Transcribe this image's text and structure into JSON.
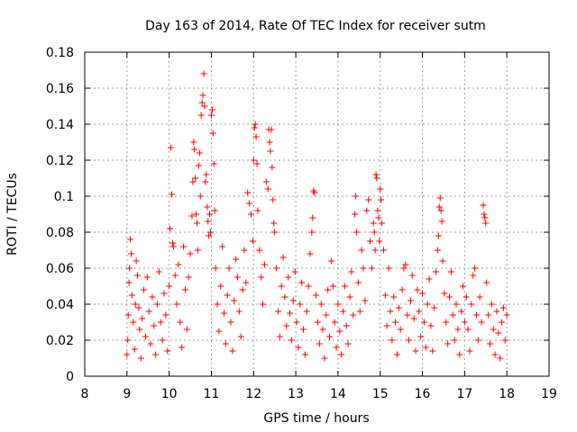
{
  "chart_data": {
    "type": "scatter",
    "title": "Day 163 of 2014, Rate Of TEC Index for receiver sutm",
    "xlabel": "GPS time / hours",
    "ylabel": "ROTI / TECUs",
    "xlim": [
      8,
      19
    ],
    "ylim": [
      0,
      0.18
    ],
    "xticks": [
      8,
      9,
      10,
      11,
      12,
      13,
      14,
      15,
      16,
      17,
      18,
      19
    ],
    "yticks": [
      0,
      0.02,
      0.04,
      0.06,
      0.08,
      0.1,
      0.12,
      0.14,
      0.16,
      0.18
    ],
    "grid": true,
    "marker": "+",
    "color": "#ff0000",
    "series": [
      {
        "name": "ROTI",
        "points": [
          [
            9.0,
            0.012
          ],
          [
            9.02,
            0.02
          ],
          [
            9.03,
            0.034
          ],
          [
            9.05,
            0.052
          ],
          [
            9.06,
            0.06
          ],
          [
            9.08,
            0.076
          ],
          [
            9.1,
            0.068
          ],
          [
            9.12,
            0.045
          ],
          [
            9.15,
            0.03
          ],
          [
            9.18,
            0.015
          ],
          [
            9.2,
            0.04
          ],
          [
            9.22,
            0.064
          ],
          [
            9.25,
            0.056
          ],
          [
            9.28,
            0.038
          ],
          [
            9.3,
            0.026
          ],
          [
            9.33,
            0.01
          ],
          [
            9.36,
            0.032
          ],
          [
            9.4,
            0.048
          ],
          [
            9.44,
            0.022
          ],
          [
            9.48,
            0.055
          ],
          [
            9.52,
            0.036
          ],
          [
            9.56,
            0.018
          ],
          [
            9.6,
            0.044
          ],
          [
            9.64,
            0.028
          ],
          [
            9.68,
            0.012
          ],
          [
            9.72,
            0.04
          ],
          [
            9.76,
            0.058
          ],
          [
            9.8,
            0.03
          ],
          [
            9.84,
            0.02
          ],
          [
            9.88,
            0.046
          ],
          [
            9.92,
            0.034
          ],
          [
            9.96,
            0.014
          ],
          [
            10.0,
            0.05
          ],
          [
            10.02,
            0.082
          ],
          [
            10.04,
            0.127
          ],
          [
            10.06,
            0.101
          ],
          [
            10.08,
            0.074
          ],
          [
            10.1,
            0.072
          ],
          [
            10.14,
            0.056
          ],
          [
            10.18,
            0.04
          ],
          [
            10.22,
            0.062
          ],
          [
            10.26,
            0.03
          ],
          [
            10.3,
            0.016
          ],
          [
            10.34,
            0.072
          ],
          [
            10.38,
            0.048
          ],
          [
            10.42,
            0.026
          ],
          [
            10.46,
            0.055
          ],
          [
            10.5,
            0.068
          ],
          [
            10.54,
            0.089
          ],
          [
            10.56,
            0.108
          ],
          [
            10.58,
            0.13
          ],
          [
            10.6,
            0.126
          ],
          [
            10.62,
            0.11
          ],
          [
            10.64,
            0.09
          ],
          [
            10.66,
            0.085
          ],
          [
            10.68,
            0.07
          ],
          [
            10.7,
            0.117
          ],
          [
            10.72,
            0.124
          ],
          [
            10.74,
            0.1
          ],
          [
            10.76,
            0.145
          ],
          [
            10.78,
            0.152
          ],
          [
            10.8,
            0.156
          ],
          [
            10.82,
            0.168
          ],
          [
            10.84,
            0.15
          ],
          [
            10.86,
            0.108
          ],
          [
            10.88,
            0.112
          ],
          [
            10.9,
            0.094
          ],
          [
            10.92,
            0.086
          ],
          [
            10.94,
            0.078
          ],
          [
            10.96,
            0.09
          ],
          [
            10.98,
            0.08
          ],
          [
            11.0,
            0.145
          ],
          [
            11.02,
            0.148
          ],
          [
            11.04,
            0.135
          ],
          [
            11.06,
            0.118
          ],
          [
            11.08,
            0.092
          ],
          [
            11.1,
            0.06
          ],
          [
            11.14,
            0.04
          ],
          [
            11.18,
            0.025
          ],
          [
            11.22,
            0.05
          ],
          [
            11.26,
            0.072
          ],
          [
            11.3,
            0.035
          ],
          [
            11.34,
            0.018
          ],
          [
            11.38,
            0.045
          ],
          [
            11.42,
            0.06
          ],
          [
            11.46,
            0.03
          ],
          [
            11.5,
            0.014
          ],
          [
            11.54,
            0.042
          ],
          [
            11.58,
            0.065
          ],
          [
            11.62,
            0.055
          ],
          [
            11.66,
            0.036
          ],
          [
            11.7,
            0.022
          ],
          [
            11.74,
            0.048
          ],
          [
            11.78,
            0.07
          ],
          [
            11.82,
            0.052
          ],
          [
            11.86,
            0.102
          ],
          [
            11.9,
            0.096
          ],
          [
            11.94,
            0.09
          ],
          [
            11.98,
            0.075
          ],
          [
            12.0,
            0.12
          ],
          [
            12.02,
            0.138
          ],
          [
            12.04,
            0.14
          ],
          [
            12.06,
            0.133
          ],
          [
            12.08,
            0.118
          ],
          [
            12.1,
            0.092
          ],
          [
            12.14,
            0.07
          ],
          [
            12.18,
            0.055
          ],
          [
            12.22,
            0.04
          ],
          [
            12.26,
            0.062
          ],
          [
            12.3,
            0.108
          ],
          [
            12.34,
            0.104
          ],
          [
            12.36,
            0.137
          ],
          [
            12.38,
            0.13
          ],
          [
            12.4,
            0.125
          ],
          [
            12.42,
            0.137
          ],
          [
            12.44,
            0.116
          ],
          [
            12.46,
            0.098
          ],
          [
            12.48,
            0.085
          ],
          [
            12.5,
            0.08
          ],
          [
            12.54,
            0.06
          ],
          [
            12.58,
            0.036
          ],
          [
            12.62,
            0.022
          ],
          [
            12.66,
            0.05
          ],
          [
            12.7,
            0.066
          ],
          [
            12.74,
            0.044
          ],
          [
            12.78,
            0.028
          ],
          [
            12.82,
            0.055
          ],
          [
            12.86,
            0.035
          ],
          [
            12.9,
            0.02
          ],
          [
            12.94,
            0.042
          ],
          [
            12.98,
            0.058
          ],
          [
            13.02,
            0.03
          ],
          [
            13.06,
            0.016
          ],
          [
            13.1,
            0.04
          ],
          [
            13.14,
            0.052
          ],
          [
            13.18,
            0.026
          ],
          [
            13.22,
            0.012
          ],
          [
            13.26,
            0.036
          ],
          [
            13.3,
            0.05
          ],
          [
            13.34,
            0.068
          ],
          [
            13.38,
            0.08
          ],
          [
            13.4,
            0.088
          ],
          [
            13.42,
            0.103
          ],
          [
            13.44,
            0.102
          ],
          [
            13.48,
            0.045
          ],
          [
            13.52,
            0.03
          ],
          [
            13.56,
            0.018
          ],
          [
            13.6,
            0.04
          ],
          [
            13.64,
            0.026
          ],
          [
            13.68,
            0.01
          ],
          [
            13.72,
            0.034
          ],
          [
            13.76,
            0.048
          ],
          [
            13.8,
            0.022
          ],
          [
            13.84,
            0.064
          ],
          [
            13.88,
            0.05
          ],
          [
            13.92,
            0.03
          ],
          [
            13.96,
            0.016
          ],
          [
            14.0,
            0.04
          ],
          [
            14.04,
            0.025
          ],
          [
            14.08,
            0.012
          ],
          [
            14.12,
            0.036
          ],
          [
            14.16,
            0.05
          ],
          [
            14.2,
            0.028
          ],
          [
            14.24,
            0.018
          ],
          [
            14.28,
            0.044
          ],
          [
            14.32,
            0.058
          ],
          [
            14.36,
            0.034
          ],
          [
            14.4,
            0.09
          ],
          [
            14.42,
            0.1
          ],
          [
            14.44,
            0.08
          ],
          [
            14.48,
            0.052
          ],
          [
            14.52,
            0.036
          ],
          [
            14.56,
            0.07
          ],
          [
            14.6,
            0.06
          ],
          [
            14.64,
            0.042
          ],
          [
            14.68,
            0.092
          ],
          [
            14.72,
            0.098
          ],
          [
            14.76,
            0.075
          ],
          [
            14.8,
            0.06
          ],
          [
            14.84,
            0.085
          ],
          [
            14.86,
            0.08
          ],
          [
            14.88,
            0.07
          ],
          [
            14.9,
            0.112
          ],
          [
            14.92,
            0.11
          ],
          [
            14.94,
            0.092
          ],
          [
            14.96,
            0.088
          ],
          [
            14.98,
            0.075
          ],
          [
            15.0,
            0.104
          ],
          [
            15.02,
            0.098
          ],
          [
            15.04,
            0.085
          ],
          [
            15.08,
            0.07
          ],
          [
            15.12,
            0.045
          ],
          [
            15.16,
            0.028
          ],
          [
            15.2,
            0.06
          ],
          [
            15.24,
            0.036
          ],
          [
            15.28,
            0.02
          ],
          [
            15.32,
            0.044
          ],
          [
            15.36,
            0.03
          ],
          [
            15.4,
            0.012
          ],
          [
            15.44,
            0.038
          ],
          [
            15.48,
            0.026
          ],
          [
            15.52,
            0.048
          ],
          [
            15.56,
            0.06
          ],
          [
            15.6,
            0.062
          ],
          [
            15.64,
            0.034
          ],
          [
            15.68,
            0.02
          ],
          [
            15.72,
            0.042
          ],
          [
            15.76,
            0.056
          ],
          [
            15.8,
            0.032
          ],
          [
            15.84,
            0.014
          ],
          [
            15.88,
            0.048
          ],
          [
            15.92,
            0.036
          ],
          [
            15.96,
            0.022
          ],
          [
            16.0,
            0.046
          ],
          [
            16.04,
            0.03
          ],
          [
            16.08,
            0.016
          ],
          [
            16.12,
            0.04
          ],
          [
            16.16,
            0.054
          ],
          [
            16.2,
            0.028
          ],
          [
            16.24,
            0.014
          ],
          [
            16.28,
            0.038
          ],
          [
            16.32,
            0.058
          ],
          [
            16.36,
            0.07
          ],
          [
            16.38,
            0.078
          ],
          [
            16.4,
            0.094
          ],
          [
            16.42,
            0.099
          ],
          [
            16.44,
            0.092
          ],
          [
            16.46,
            0.086
          ],
          [
            16.48,
            0.064
          ],
          [
            16.52,
            0.046
          ],
          [
            16.56,
            0.03
          ],
          [
            16.6,
            0.018
          ],
          [
            16.64,
            0.044
          ],
          [
            16.68,
            0.058
          ],
          [
            16.72,
            0.034
          ],
          [
            16.76,
            0.02
          ],
          [
            16.8,
            0.04
          ],
          [
            16.84,
            0.026
          ],
          [
            16.88,
            0.012
          ],
          [
            16.92,
            0.036
          ],
          [
            16.96,
            0.05
          ],
          [
            17.0,
            0.03
          ],
          [
            17.04,
            0.044
          ],
          [
            17.08,
            0.026
          ],
          [
            17.12,
            0.014
          ],
          [
            17.16,
            0.04
          ],
          [
            17.2,
            0.056
          ],
          [
            17.24,
            0.06
          ],
          [
            17.28,
            0.034
          ],
          [
            17.32,
            0.02
          ],
          [
            17.36,
            0.044
          ],
          [
            17.4,
            0.03
          ],
          [
            17.44,
            0.095
          ],
          [
            17.46,
            0.09
          ],
          [
            17.48,
            0.088
          ],
          [
            17.5,
            0.085
          ],
          [
            17.52,
            0.052
          ],
          [
            17.56,
            0.034
          ],
          [
            17.6,
            0.018
          ],
          [
            17.64,
            0.04
          ],
          [
            17.68,
            0.026
          ],
          [
            17.72,
            0.012
          ],
          [
            17.76,
            0.036
          ],
          [
            17.8,
            0.024
          ],
          [
            17.84,
            0.01
          ],
          [
            17.88,
            0.03
          ],
          [
            17.92,
            0.038
          ],
          [
            17.96,
            0.02
          ],
          [
            18.0,
            0.034
          ]
        ]
      }
    ]
  }
}
